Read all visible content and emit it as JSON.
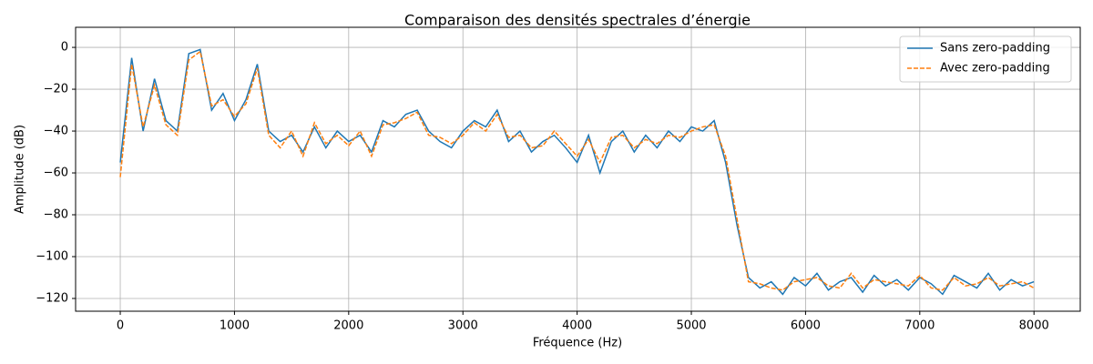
{
  "chart_data": {
    "type": "line",
    "title": "Comparaison des densités spectrales d’énergie",
    "xlabel": "Fréquence (Hz)",
    "ylabel": "Amplitude (dB)",
    "x": [
      0,
      100,
      200,
      300,
      400,
      500,
      600,
      700,
      800,
      900,
      1000,
      1100,
      1200,
      1300,
      1400,
      1500,
      1600,
      1700,
      1800,
      1900,
      2000,
      2100,
      2200,
      2300,
      2400,
      2500,
      2600,
      2700,
      2800,
      2900,
      3000,
      3100,
      3200,
      3300,
      3400,
      3500,
      3600,
      3700,
      3800,
      3900,
      4000,
      4100,
      4200,
      4300,
      4400,
      4500,
      4600,
      4700,
      4800,
      4900,
      5000,
      5100,
      5200,
      5300,
      5400,
      5500,
      5600,
      5700,
      5800,
      5900,
      6000,
      6100,
      6200,
      6300,
      6400,
      6500,
      6600,
      6700,
      6800,
      6900,
      7000,
      7100,
      7200,
      7300,
      7400,
      7500,
      7600,
      7700,
      7800,
      7900,
      8000
    ],
    "series": [
      {
        "name": "Sans zero-padding",
        "color": "#1f77b4",
        "dash": false,
        "values": [
          -55,
          -5,
          -40,
          -15,
          -35,
          -40,
          -3,
          -1,
          -30,
          -22,
          -35,
          -25,
          -8,
          -40,
          -45,
          -42,
          -50,
          -38,
          -48,
          -40,
          -45,
          -42,
          -50,
          -35,
          -38,
          -32,
          -30,
          -40,
          -45,
          -48,
          -40,
          -35,
          -38,
          -30,
          -45,
          -40,
          -50,
          -45,
          -42,
          -48,
          -55,
          -42,
          -60,
          -45,
          -40,
          -50,
          -42,
          -48,
          -40,
          -45,
          -38,
          -40,
          -35,
          -55,
          -85,
          -110,
          -115,
          -112,
          -118,
          -110,
          -114,
          -108,
          -116,
          -112,
          -110,
          -117,
          -109,
          -114,
          -111,
          -116,
          -110,
          -113,
          -118,
          -109,
          -112,
          -115,
          -108,
          -116,
          -111,
          -114,
          -112
        ]
      },
      {
        "name": "Avec zero-padding",
        "color": "#ff7f0e",
        "dash": true,
        "values": [
          -62,
          -8,
          -38,
          -18,
          -37,
          -42,
          -6,
          -2,
          -28,
          -25,
          -33,
          -27,
          -10,
          -42,
          -48,
          -40,
          -52,
          -36,
          -46,
          -42,
          -47,
          -40,
          -52,
          -37,
          -36,
          -34,
          -31,
          -42,
          -43,
          -46,
          -42,
          -36,
          -40,
          -32,
          -43,
          -42,
          -48,
          -47,
          -40,
          -46,
          -52,
          -44,
          -55,
          -43,
          -42,
          -48,
          -44,
          -46,
          -42,
          -43,
          -40,
          -38,
          -37,
          -52,
          -82,
          -112,
          -113,
          -115,
          -116,
          -112,
          -111,
          -110,
          -114,
          -115,
          -108,
          -115,
          -111,
          -112,
          -113,
          -114,
          -109,
          -115,
          -116,
          -110,
          -114,
          -113,
          -110,
          -114,
          -113,
          -112,
          -115
        ]
      }
    ],
    "xlim": [
      -391,
      8405
    ],
    "ylim": [
      -126.1,
      9.6
    ],
    "xticks": [
      0,
      1000,
      2000,
      3000,
      4000,
      5000,
      6000,
      7000,
      8000
    ],
    "yticks": [
      {
        "value": -120,
        "label": "−120"
      },
      {
        "value": -100,
        "label": "−100"
      },
      {
        "value": -80,
        "label": "−80"
      },
      {
        "value": -60,
        "label": "−60"
      },
      {
        "value": -40,
        "label": "−40"
      },
      {
        "value": -20,
        "label": "−20"
      },
      0
    ],
    "grid": true,
    "legend": "upper right"
  }
}
